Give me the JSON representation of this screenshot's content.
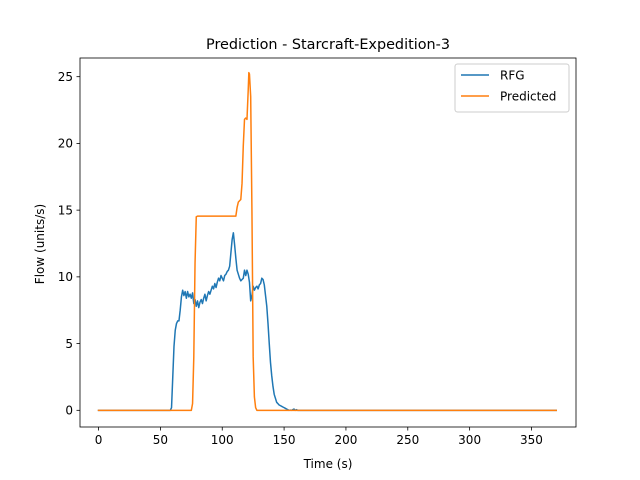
{
  "chart_data": {
    "type": "line",
    "title": "Prediction - Starcraft-Expedition-3",
    "xlabel": "Time (s)",
    "ylabel": "Flow (units/s)",
    "xlim": [
      -15,
      386
    ],
    "ylim": [
      -1.25,
      26.4
    ],
    "xticks": [
      0,
      50,
      100,
      150,
      200,
      250,
      300,
      350
    ],
    "yticks": [
      0,
      5,
      10,
      15,
      20,
      25
    ],
    "grid": false,
    "legend_position": "top-right",
    "series": [
      {
        "name": "RFG",
        "color": "#1f77b4",
        "points": [
          [
            0,
            0
          ],
          [
            58,
            0
          ],
          [
            59,
            0.2
          ],
          [
            60,
            2.5
          ],
          [
            61,
            4.8
          ],
          [
            62,
            6.0
          ],
          [
            63,
            6.5
          ],
          [
            64,
            6.7
          ],
          [
            65,
            6.7
          ],
          [
            66,
            7.5
          ],
          [
            67,
            8.5
          ],
          [
            68,
            9.0
          ],
          [
            69,
            8.6
          ],
          [
            70,
            8.9
          ],
          [
            71,
            8.4
          ],
          [
            72,
            8.9
          ],
          [
            73,
            8.5
          ],
          [
            74,
            8.7
          ],
          [
            75,
            8.4
          ],
          [
            76,
            8.8
          ],
          [
            77,
            8.0
          ],
          [
            78,
            8.3
          ],
          [
            79,
            7.8
          ],
          [
            80,
            8.2
          ],
          [
            81,
            7.7
          ],
          [
            82,
            8.1
          ],
          [
            83,
            8.3
          ],
          [
            84,
            8.0
          ],
          [
            85,
            8.4
          ],
          [
            86,
            8.7
          ],
          [
            87,
            8.2
          ],
          [
            88,
            8.6
          ],
          [
            89,
            8.9
          ],
          [
            90,
            8.7
          ],
          [
            91,
            9.0
          ],
          [
            92,
            9.3
          ],
          [
            93,
            9.1
          ],
          [
            94,
            9.5
          ],
          [
            95,
            9.2
          ],
          [
            96,
            9.6
          ],
          [
            97,
            9.9
          ],
          [
            98,
            9.7
          ],
          [
            99,
            10.1
          ],
          [
            100,
            9.9
          ],
          [
            101,
            9.7
          ],
          [
            102,
            10.1
          ],
          [
            103,
            10.2
          ],
          [
            104,
            10.4
          ],
          [
            105,
            10.5
          ],
          [
            106,
            10.8
          ],
          [
            107,
            11.8
          ],
          [
            108,
            12.8
          ],
          [
            109,
            13.3
          ],
          [
            110,
            12.4
          ],
          [
            111,
            11.4
          ],
          [
            112,
            10.5
          ],
          [
            113,
            10.2
          ],
          [
            114,
            9.9
          ],
          [
            115,
            9.7
          ],
          [
            116,
            9.8
          ],
          [
            117,
            9.9
          ],
          [
            118,
            10.5
          ],
          [
            119,
            10.1
          ],
          [
            120,
            10.5
          ],
          [
            121,
            10.2
          ],
          [
            122,
            9.6
          ],
          [
            123,
            8.2
          ],
          [
            124,
            8.6
          ],
          [
            125,
            9.3
          ],
          [
            126,
            9.0
          ],
          [
            127,
            9.2
          ],
          [
            128,
            9.3
          ],
          [
            129,
            9.1
          ],
          [
            130,
            9.4
          ],
          [
            131,
            9.5
          ],
          [
            132,
            9.9
          ],
          [
            133,
            9.8
          ],
          [
            134,
            9.4
          ],
          [
            135,
            8.6
          ],
          [
            136,
            7.8
          ],
          [
            137,
            6.5
          ],
          [
            138,
            5.0
          ],
          [
            139,
            3.6
          ],
          [
            140,
            2.6
          ],
          [
            141,
            1.8
          ],
          [
            142,
            1.2
          ],
          [
            143,
            0.9
          ],
          [
            144,
            0.6
          ],
          [
            145,
            0.5
          ],
          [
            146,
            0.4
          ],
          [
            147,
            0.35
          ],
          [
            148,
            0.3
          ],
          [
            149,
            0.25
          ],
          [
            150,
            0.2
          ],
          [
            151,
            0.15
          ],
          [
            152,
            0.1
          ],
          [
            153,
            0.05
          ],
          [
            154,
            0.0
          ],
          [
            155,
            0.02
          ],
          [
            156,
            0.0
          ],
          [
            157,
            0.05
          ],
          [
            158,
            0.1
          ],
          [
            159,
            0.0
          ],
          [
            160,
            0.05
          ],
          [
            161,
            0.0
          ],
          [
            165,
            0
          ],
          [
            370,
            0
          ]
        ]
      },
      {
        "name": "Predicted",
        "color": "#ff7f0e",
        "points": [
          [
            0,
            0
          ],
          [
            75,
            0
          ],
          [
            76,
            0.5
          ],
          [
            77,
            4.0
          ],
          [
            78,
            11.0
          ],
          [
            79,
            14.5
          ],
          [
            80,
            14.55
          ],
          [
            110,
            14.55
          ],
          [
            111,
            14.55
          ],
          [
            112,
            15.2
          ],
          [
            113,
            15.6
          ],
          [
            114,
            15.7
          ],
          [
            115,
            15.8
          ],
          [
            116,
            17.0
          ],
          [
            117,
            19.8
          ],
          [
            118,
            21.8
          ],
          [
            119,
            21.9
          ],
          [
            120,
            21.8
          ],
          [
            121,
            24.0
          ],
          [
            121.5,
            25.3
          ],
          [
            122,
            25.2
          ],
          [
            123,
            23.5
          ],
          [
            124,
            15.0
          ],
          [
            125,
            4.0
          ],
          [
            126,
            1.0
          ],
          [
            127,
            0.2
          ],
          [
            128,
            0
          ],
          [
            370,
            0
          ]
        ]
      }
    ]
  }
}
